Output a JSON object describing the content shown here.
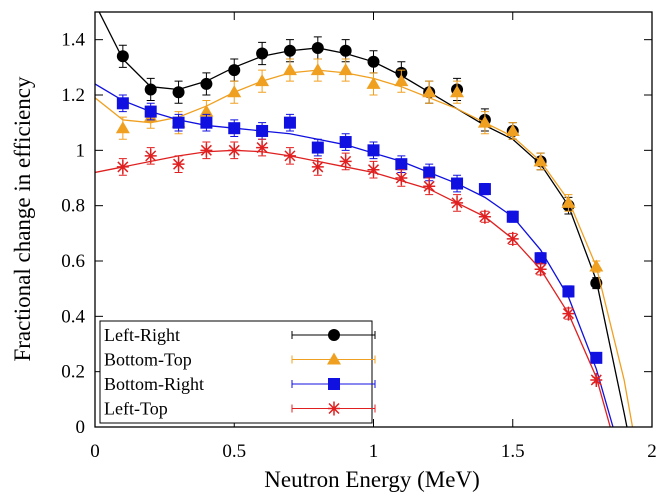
{
  "chart_data": {
    "type": "scatter",
    "xlabel": "Neutron Energy (MeV)",
    "ylabel": "Fractional change in efficiency",
    "xlim": [
      0,
      2
    ],
    "ylim": [
      0,
      1.5
    ],
    "xticks": [
      0,
      0.5,
      1,
      1.5,
      2
    ],
    "yticks": [
      0,
      0.2,
      0.4,
      0.6,
      0.8,
      1,
      1.2,
      1.4
    ],
    "x": [
      0.1,
      0.2,
      0.3,
      0.4,
      0.5,
      0.6,
      0.7,
      0.8,
      0.9,
      1.0,
      1.1,
      1.2,
      1.3,
      1.4,
      1.5,
      1.6,
      1.7,
      1.8
    ],
    "series": [
      {
        "name": "Left-Right",
        "color": "#000000",
        "marker": "circle",
        "values": [
          1.34,
          1.22,
          1.21,
          1.24,
          1.29,
          1.35,
          1.36,
          1.37,
          1.36,
          1.32,
          1.28,
          1.21,
          1.22,
          1.11,
          1.07,
          0.96,
          0.8,
          0.52
        ],
        "errors": [
          0.04,
          0.04,
          0.04,
          0.04,
          0.04,
          0.04,
          0.04,
          0.04,
          0.04,
          0.04,
          0.04,
          0.04,
          0.04,
          0.04,
          0.03,
          0.03,
          0.03,
          0.02
        ],
        "fit_x": [
          0,
          0.1,
          0.2,
          0.3,
          0.4,
          0.5,
          0.6,
          0.7,
          0.8,
          0.9,
          1.0,
          1.1,
          1.2,
          1.3,
          1.4,
          1.5,
          1.6,
          1.7,
          1.8,
          1.9,
          1.91
        ],
        "fit_values": [
          1.53,
          1.33,
          1.23,
          1.22,
          1.25,
          1.3,
          1.34,
          1.36,
          1.37,
          1.35,
          1.32,
          1.27,
          1.21,
          1.15,
          1.09,
          1.04,
          0.95,
          0.8,
          0.53,
          0.05,
          0
        ]
      },
      {
        "name": "Bottom-Top",
        "color": "#f0a020",
        "marker": "triangle",
        "values": [
          1.08,
          1.12,
          1.1,
          1.14,
          1.21,
          1.25,
          1.29,
          1.29,
          1.29,
          1.24,
          1.25,
          1.21,
          1.21,
          1.1,
          1.07,
          0.96,
          0.81,
          0.58
        ],
        "errors": [
          0.04,
          0.04,
          0.04,
          0.04,
          0.04,
          0.04,
          0.04,
          0.04,
          0.04,
          0.04,
          0.04,
          0.04,
          0.04,
          0.04,
          0.03,
          0.03,
          0.03,
          0.02
        ],
        "fit_x": [
          0,
          0.1,
          0.2,
          0.3,
          0.4,
          0.5,
          0.6,
          0.7,
          0.8,
          0.9,
          1.0,
          1.1,
          1.2,
          1.3,
          1.4,
          1.5,
          1.6,
          1.7,
          1.8,
          1.9,
          1.93
        ],
        "fit_values": [
          1.19,
          1.11,
          1.1,
          1.12,
          1.16,
          1.21,
          1.25,
          1.28,
          1.29,
          1.28,
          1.26,
          1.23,
          1.19,
          1.15,
          1.1,
          1.05,
          0.96,
          0.82,
          0.58,
          0.17,
          0
        ]
      },
      {
        "name": "Bottom-Right",
        "color": "#1010e0",
        "marker": "square",
        "values": [
          1.17,
          1.14,
          1.1,
          1.1,
          1.08,
          1.07,
          1.1,
          1.01,
          1.03,
          1.0,
          0.95,
          0.92,
          0.88,
          0.86,
          0.76,
          0.61,
          0.49,
          0.25
        ],
        "errors": [
          0.03,
          0.03,
          0.03,
          0.03,
          0.03,
          0.03,
          0.03,
          0.03,
          0.03,
          0.03,
          0.03,
          0.03,
          0.03,
          0.02,
          0.02,
          0.02,
          0.02,
          0.01
        ],
        "fit_x": [
          0,
          0.1,
          0.2,
          0.3,
          0.4,
          0.5,
          0.6,
          0.7,
          0.8,
          0.9,
          1.0,
          1.1,
          1.2,
          1.3,
          1.4,
          1.5,
          1.6,
          1.7,
          1.8,
          1.86
        ],
        "fit_values": [
          1.24,
          1.18,
          1.14,
          1.11,
          1.09,
          1.08,
          1.07,
          1.06,
          1.04,
          1.02,
          0.99,
          0.96,
          0.92,
          0.88,
          0.83,
          0.76,
          0.64,
          0.47,
          0.21,
          0
        ]
      },
      {
        "name": "Left-Top",
        "color": "#e02020",
        "marker": "star",
        "values": [
          0.94,
          0.98,
          0.95,
          1.0,
          1.0,
          1.01,
          0.98,
          0.94,
          0.96,
          0.93,
          0.9,
          0.87,
          0.81,
          0.76,
          0.68,
          0.57,
          0.41,
          0.17
        ],
        "errors": [
          0.03,
          0.03,
          0.03,
          0.03,
          0.03,
          0.03,
          0.03,
          0.03,
          0.03,
          0.03,
          0.03,
          0.03,
          0.03,
          0.02,
          0.02,
          0.02,
          0.02,
          0.01
        ],
        "fit_x": [
          0,
          0.1,
          0.2,
          0.3,
          0.4,
          0.5,
          0.6,
          0.7,
          0.8,
          0.9,
          1.0,
          1.1,
          1.2,
          1.3,
          1.4,
          1.5,
          1.6,
          1.7,
          1.8,
          1.85
        ],
        "fit_values": [
          0.92,
          0.94,
          0.96,
          0.98,
          0.995,
          1.0,
          0.995,
          0.98,
          0.96,
          0.94,
          0.92,
          0.89,
          0.86,
          0.81,
          0.76,
          0.68,
          0.57,
          0.41,
          0.18,
          0
        ]
      }
    ],
    "legend": "lower left"
  }
}
